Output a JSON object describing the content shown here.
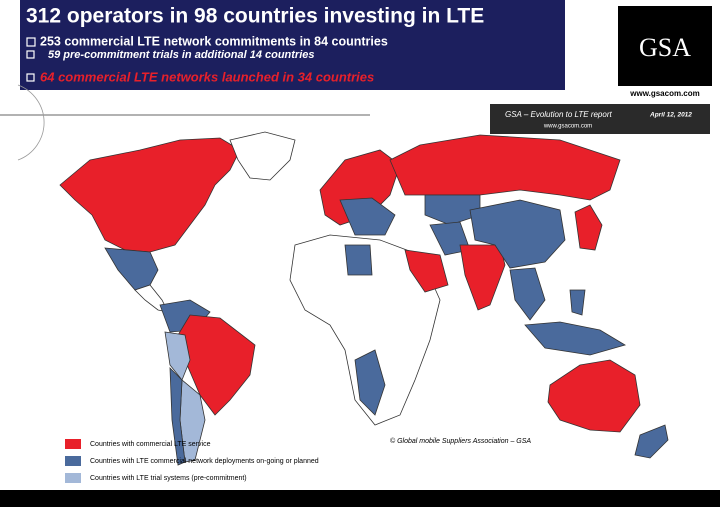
{
  "header": {
    "title": "312 operators in 98 countries investing in LTE",
    "bullets": [
      "253 commercial LTE network commitments in 84 countries",
      "59 pre-commitment trials in additional 14 countries",
      "64 commercial LTE networks launched in 34 countries"
    ]
  },
  "logo": {
    "text": "GSA",
    "url": "www.gsacom.com"
  },
  "report": {
    "title": "GSA – Evolution to LTE report",
    "date": "April 12, 2012",
    "url": "www.gsacom.com"
  },
  "credit": "© Global mobile Suppliers Association – GSA",
  "legend": {
    "items": [
      {
        "label": "Countries with commercial LTE service",
        "color": "#e8202a"
      },
      {
        "label": "Countries with LTE commercial network deployments on-going or planned",
        "color": "#4a6a9c"
      },
      {
        "label": "Countries with LTE trial systems (pre-commitment)",
        "color": "#a3b8d8"
      }
    ]
  }
}
